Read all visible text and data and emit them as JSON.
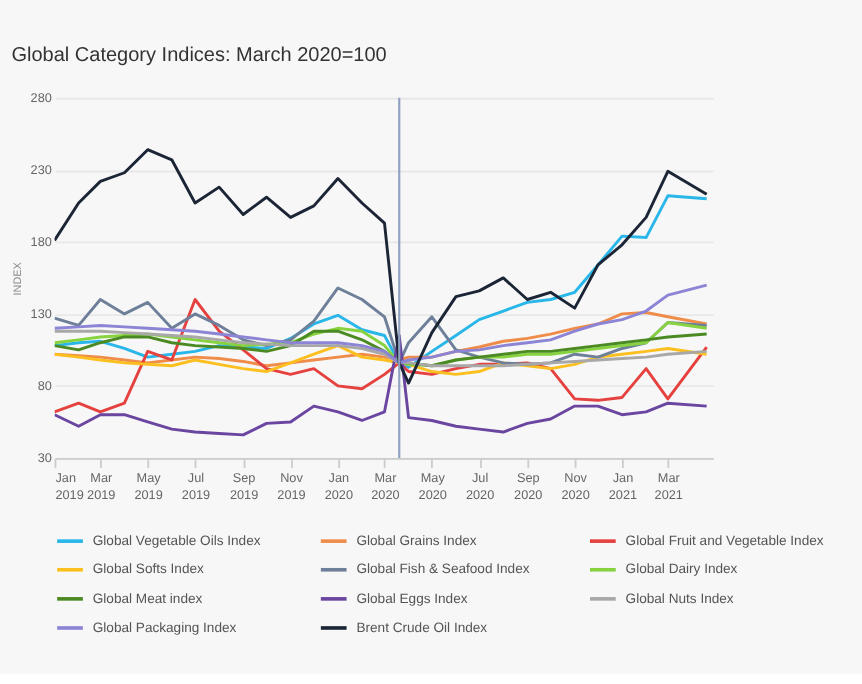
{
  "chart_data": {
    "type": "line",
    "title": "Global Category Indices: March 2020=100",
    "ylabel": "INDEX",
    "x": [
      "2019-01-01",
      "2019-02-01",
      "2019-03-01",
      "2019-04-01",
      "2019-05-01",
      "2019-06-01",
      "2019-07-01",
      "2019-08-01",
      "2019-09-01",
      "2019-10-01",
      "2019-11-01",
      "2019-12-01",
      "2020-01-01",
      "2020-02-01",
      "2020-03-01",
      "2020-03-20",
      "2020-04-01",
      "2020-05-01",
      "2020-06-01",
      "2020-07-01",
      "2020-08-01",
      "2020-09-01",
      "2020-10-01",
      "2020-11-01",
      "2020-12-01",
      "2021-01-01",
      "2021-02-01",
      "2021-03-01",
      "2021-04-20"
    ],
    "series": [
      {
        "name": "Global Vegetable Oils Index",
        "color": "#29b6e8",
        "values": [
          108,
          110,
          111,
          106,
          100,
          102,
          104,
          108,
          107,
          106,
          113,
          123,
          129,
          119,
          115,
          96,
          93,
          104,
          115,
          126,
          132,
          138,
          140,
          145,
          164,
          184,
          183,
          212,
          210
        ]
      },
      {
        "name": "Global Grains Index",
        "color": "#f08c4a",
        "values": [
          102,
          101,
          100,
          98,
          96,
          98,
          100,
          99,
          97,
          94,
          96,
          98,
          100,
          102,
          100,
          98,
          100,
          100,
          104,
          107,
          111,
          113,
          116,
          120,
          123,
          130,
          131,
          128,
          123
        ]
      },
      {
        "name": "Global Fruit and Vegetable Index",
        "color": "#e5413f",
        "values": [
          62,
          68,
          62,
          68,
          104,
          98,
          140,
          118,
          105,
          92,
          88,
          92,
          80,
          78,
          88,
          96,
          90,
          88,
          92,
          95,
          95,
          96,
          92,
          71,
          70,
          72,
          92,
          71,
          107
        ]
      },
      {
        "name": "Global Softs Index",
        "color": "#fbbf1f",
        "values": [
          102,
          100,
          98,
          96,
          95,
          94,
          98,
          95,
          92,
          90,
          96,
          102,
          108,
          100,
          98,
          96,
          95,
          90,
          88,
          90,
          96,
          94,
          92,
          95,
          100,
          102,
          104,
          106,
          102
        ]
      },
      {
        "name": "Global Fish & Seafood Index",
        "color": "#6e7f99",
        "values": [
          127,
          122,
          140,
          130,
          138,
          120,
          130,
          122,
          112,
          108,
          112,
          125,
          148,
          140,
          128,
          96,
          110,
          128,
          105,
          100,
          96,
          95,
          96,
          102,
          100,
          106,
          110,
          124,
          122
        ]
      },
      {
        "name": "Global Dairy Index",
        "color": "#86d33f",
        "values": [
          110,
          112,
          114,
          115,
          116,
          114,
          112,
          110,
          108,
          109,
          110,
          116,
          120,
          118,
          108,
          96,
          95,
          94,
          98,
          100,
          100,
          102,
          102,
          104,
          106,
          108,
          110,
          124,
          120
        ]
      },
      {
        "name": "Global Meat index",
        "color": "#4b8a22",
        "values": [
          108,
          105,
          110,
          114,
          114,
          110,
          108,
          107,
          106,
          104,
          108,
          118,
          118,
          112,
          104,
          96,
          96,
          94,
          98,
          100,
          102,
          104,
          104,
          106,
          108,
          110,
          112,
          114,
          116
        ]
      },
      {
        "name": "Global Eggs Index",
        "color": "#6a46a0",
        "values": [
          60,
          52,
          60,
          60,
          55,
          50,
          48,
          47,
          46,
          54,
          55,
          66,
          62,
          56,
          62,
          115,
          58,
          56,
          52,
          50,
          48,
          54,
          57,
          66,
          66,
          60,
          62,
          68,
          66
        ]
      },
      {
        "name": "Global Nuts Index",
        "color": "#a8a8a8",
        "values": [
          118,
          118,
          118,
          117,
          116,
          115,
          114,
          112,
          110,
          109,
          108,
          108,
          108,
          106,
          102,
          96,
          96,
          94,
          94,
          94,
          94,
          95,
          96,
          97,
          98,
          99,
          100,
          102,
          104
        ]
      },
      {
        "name": "Global Packaging Index",
        "color": "#8c84d4",
        "values": [
          120,
          121,
          122,
          121,
          120,
          119,
          118,
          116,
          114,
          112,
          110,
          110,
          110,
          108,
          104,
          96,
          98,
          100,
          104,
          105,
          108,
          110,
          112,
          118,
          123,
          126,
          132,
          143,
          150
        ]
      },
      {
        "name": "Brent Crude Oil Index",
        "color": "#1b2535",
        "values": [
          181,
          207,
          222,
          228,
          244,
          237,
          207,
          218,
          199,
          211,
          197,
          205,
          224,
          207,
          193,
          96,
          82,
          117,
          142,
          146,
          155,
          140,
          145,
          134,
          164,
          178,
          197,
          229,
          213
        ]
      }
    ],
    "xlim": [
      "2019-01-01",
      "2021-04-28"
    ],
    "xticks": [
      {
        "value": "2019-01-01",
        "label": "Jan 2019"
      },
      {
        "value": "2019-03-01",
        "label": "Mar 2019"
      },
      {
        "value": "2019-05-01",
        "label": "May 2019"
      },
      {
        "value": "2019-07-01",
        "label": "Jul 2019"
      },
      {
        "value": "2019-09-01",
        "label": "Sep 2019"
      },
      {
        "value": "2019-11-01",
        "label": "Nov 2019"
      },
      {
        "value": "2020-01-01",
        "label": "Jan 2020"
      },
      {
        "value": "2020-03-01",
        "label": "Mar 2020"
      },
      {
        "value": "2020-05-01",
        "label": "May 2020"
      },
      {
        "value": "2020-07-01",
        "label": "Jul 2020"
      },
      {
        "value": "2020-09-01",
        "label": "Sep 2020"
      },
      {
        "value": "2020-11-01",
        "label": "Nov 2020"
      },
      {
        "value": "2021-01-01",
        "label": "Jan 2021"
      },
      {
        "value": "2021-03-01",
        "label": "Mar 2021"
      }
    ],
    "ylim": [
      30,
      280
    ],
    "yticks": [
      30,
      80,
      130,
      180,
      230,
      280
    ],
    "ref_lines": [
      {
        "axis": "x",
        "value": "2020-03-20",
        "color": "#8fa3c0"
      }
    ],
    "grid": "y",
    "legend": "bottom",
    "marker": "none",
    "line_style": "solid"
  }
}
